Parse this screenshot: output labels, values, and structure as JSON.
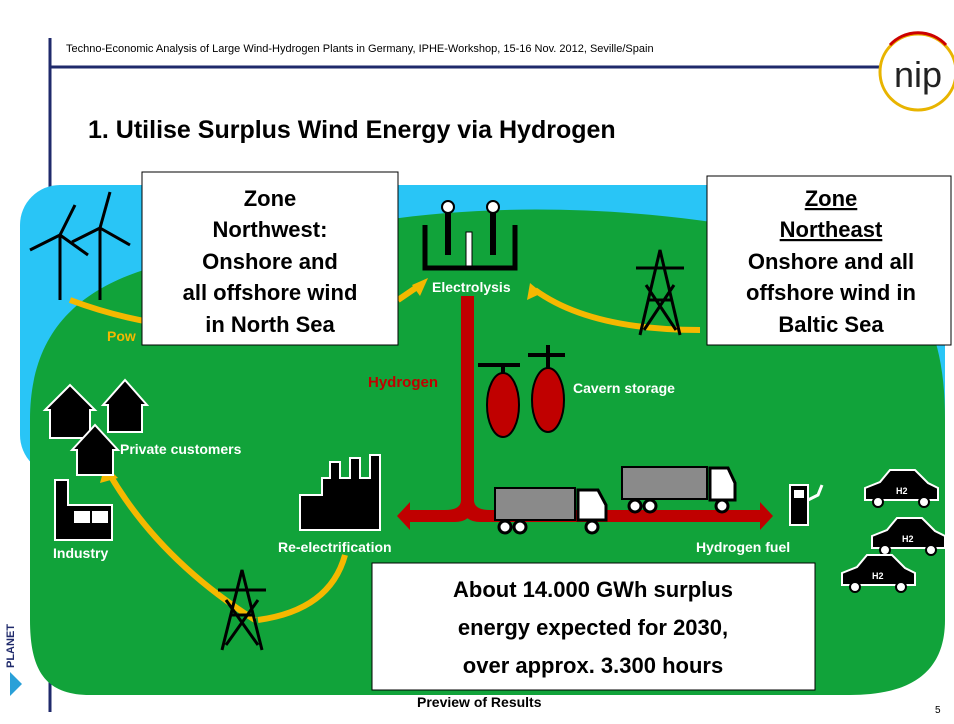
{
  "header": {
    "text": "Techno-Economic Analysis of Large Wind-Hydrogen Plants in Germany, IPHE-Workshop, 15-16 Nov. 2012, Seville/Spain",
    "logo": "nip"
  },
  "title": "1. Utilise Surplus Wind Energy via Hydrogen",
  "zone_northwest": [
    "Zone",
    "Northwest:",
    "Onshore and",
    "all offshore wind",
    "in North Sea"
  ],
  "zone_northeast": [
    "Zone",
    "Northeast",
    "Onshore and all",
    "offshore wind in",
    "Baltic Sea"
  ],
  "labels": {
    "power": "Pow",
    "electrolysis": "Electrolysis",
    "hydrogen": "Hydrogen",
    "cavern_storage": "Cavern storage",
    "private_customers": "Private customers",
    "industry": "Industry",
    "re_electrification": "Re-electrification",
    "hydrogen_fuel": "Hydrogen fuel",
    "car": "H2"
  },
  "summary": [
    "About 14.000 GWh surplus",
    "energy expected for 2030,",
    "over approx. 3.300 hours"
  ],
  "side_logo": "PLANET",
  "footer": {
    "text": "Preview of Results",
    "page": "5"
  }
}
